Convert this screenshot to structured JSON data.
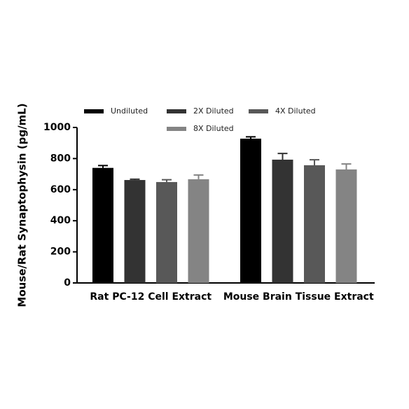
{
  "chart_data": {
    "type": "bar",
    "y_label": "Mouse/Rat Synaptophysin (pg/mL)",
    "categories": [
      "Rat PC-12 Cell Extract",
      "Mouse Brain Tissue Extract"
    ],
    "series": [
      {
        "name": "Undiluted",
        "color": "#000000",
        "values": [
          740,
          928
        ],
        "errors": [
          15,
          12
        ]
      },
      {
        "name": "2X Diluted",
        "color": "#333333",
        "values": [
          662,
          793
        ],
        "errors": [
          5,
          40
        ]
      },
      {
        "name": "4X Diluted",
        "color": "#585858",
        "values": [
          649,
          757
        ],
        "errors": [
          15,
          35
        ]
      },
      {
        "name": "8X Diluted",
        "color": "#848484",
        "values": [
          667,
          730
        ],
        "errors": [
          27,
          35
        ]
      }
    ],
    "ylim": [
      0,
      1000
    ],
    "yticks": [
      0,
      200,
      400,
      600,
      800,
      1000
    ],
    "grid": false
  }
}
